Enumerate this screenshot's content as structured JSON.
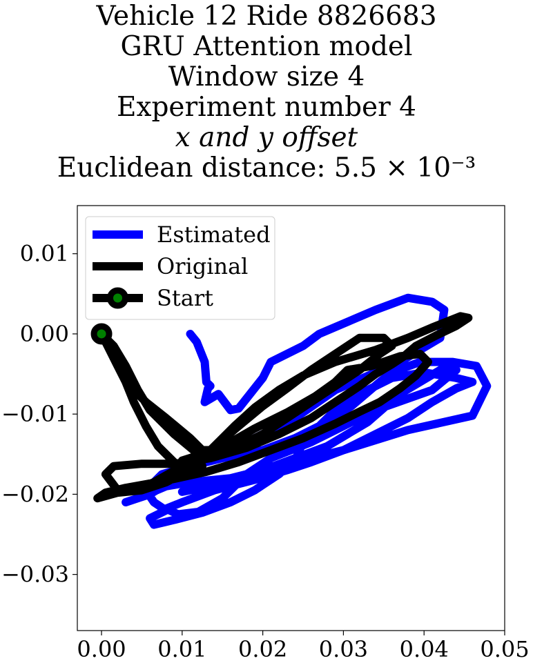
{
  "chart_data": {
    "type": "line",
    "title_lines": [
      "Vehicle 12 Ride 8826683",
      "GRU Attention model",
      "Window size 4",
      "Experiment number 4",
      "x and y offset",
      "Euclidean distance: 5.5 × 10⁻³"
    ],
    "xlabel": "",
    "ylabel": "",
    "xlim": [
      -0.003,
      0.05
    ],
    "ylim": [
      -0.037,
      0.016
    ],
    "x_ticks": [
      0.0,
      0.01,
      0.02,
      0.03,
      0.04,
      0.05
    ],
    "x_tick_labels": [
      "0.00",
      "0.01",
      "0.02",
      "0.03",
      "0.04",
      "0.05"
    ],
    "y_ticks": [
      0.01,
      0.0,
      -0.01,
      -0.02,
      -0.03
    ],
    "y_tick_labels": [
      "0.01",
      "0.00",
      "−0.01",
      "−0.02",
      "−0.03"
    ],
    "grid": false,
    "legend_position": "upper-left",
    "legend": [
      "Estimated",
      "Original",
      "Start"
    ],
    "series": [
      {
        "name": "Estimated",
        "color": "#0000ff",
        "points": [
          [
            0.011,
            0.0
          ],
          [
            0.0118,
            -0.001
          ],
          [
            0.0128,
            -0.0035
          ],
          [
            0.013,
            -0.006
          ],
          [
            0.0135,
            -0.0065
          ],
          [
            0.0132,
            -0.0068
          ],
          [
            0.0128,
            -0.0085
          ],
          [
            0.0145,
            -0.0075
          ],
          [
            0.016,
            -0.0095
          ],
          [
            0.017,
            -0.0093
          ],
          [
            0.02,
            -0.0055
          ],
          [
            0.021,
            -0.0035
          ],
          [
            0.025,
            -0.0015
          ],
          [
            0.027,
            0.0
          ],
          [
            0.034,
            0.003
          ],
          [
            0.038,
            0.0045
          ],
          [
            0.041,
            0.004
          ],
          [
            0.0425,
            0.003
          ],
          [
            0.042,
            -0.0005
          ],
          [
            0.037,
            -0.0035
          ],
          [
            0.029,
            -0.007
          ],
          [
            0.024,
            -0.0105
          ],
          [
            0.02,
            -0.0125
          ],
          [
            0.016,
            -0.0145
          ],
          [
            0.0115,
            -0.0165
          ],
          [
            0.0085,
            -0.0185
          ],
          [
            0.006,
            -0.02
          ],
          [
            0.0045,
            -0.0205
          ],
          [
            0.003,
            -0.021
          ],
          [
            0.0045,
            -0.0205
          ],
          [
            0.008,
            -0.019
          ],
          [
            0.011,
            -0.0185
          ],
          [
            0.016,
            -0.018
          ],
          [
            0.02,
            -0.017
          ],
          [
            0.024,
            -0.0155
          ],
          [
            0.028,
            -0.014
          ],
          [
            0.033,
            -0.011
          ],
          [
            0.037,
            -0.0075
          ],
          [
            0.042,
            -0.0045
          ],
          [
            0.044,
            -0.0045
          ],
          [
            0.041,
            -0.007
          ],
          [
            0.034,
            -0.0095
          ],
          [
            0.03,
            -0.0115
          ],
          [
            0.026,
            -0.0135
          ],
          [
            0.021,
            -0.0155
          ],
          [
            0.018,
            -0.0175
          ],
          [
            0.015,
            -0.0205
          ],
          [
            0.012,
            -0.0222
          ],
          [
            0.0095,
            -0.0225
          ],
          [
            0.008,
            -0.0218
          ],
          [
            0.01,
            -0.021
          ],
          [
            0.014,
            -0.0195
          ],
          [
            0.019,
            -0.0182
          ],
          [
            0.023,
            -0.017
          ],
          [
            0.026,
            -0.016
          ],
          [
            0.03,
            -0.0145
          ],
          [
            0.034,
            -0.0125
          ],
          [
            0.038,
            -0.0105
          ],
          [
            0.041,
            -0.0085
          ],
          [
            0.044,
            -0.0068
          ],
          [
            0.046,
            -0.006
          ],
          [
            0.044,
            -0.0055
          ],
          [
            0.04,
            -0.0048
          ],
          [
            0.036,
            -0.0055
          ],
          [
            0.032,
            -0.0075
          ],
          [
            0.029,
            -0.0095
          ],
          [
            0.027,
            -0.0115
          ],
          [
            0.025,
            -0.0135
          ],
          [
            0.024,
            -0.0158
          ],
          [
            0.022,
            -0.0175
          ],
          [
            0.019,
            -0.0195
          ],
          [
            0.016,
            -0.021
          ],
          [
            0.0125,
            -0.0223
          ],
          [
            0.009,
            -0.0232
          ],
          [
            0.0065,
            -0.0238
          ],
          [
            0.006,
            -0.023
          ],
          [
            0.008,
            -0.022
          ],
          [
            0.0065,
            -0.021
          ],
          [
            0.0055,
            -0.0195
          ],
          [
            0.0075,
            -0.0175
          ],
          [
            0.011,
            -0.0165
          ],
          [
            0.015,
            -0.0155
          ],
          [
            0.02,
            -0.0145
          ],
          [
            0.024,
            -0.013
          ],
          [
            0.028,
            -0.011
          ],
          [
            0.031,
            -0.009
          ],
          [
            0.0345,
            -0.006
          ],
          [
            0.036,
            -0.0048
          ],
          [
            0.0395,
            -0.0035
          ],
          [
            0.0435,
            -0.0035
          ],
          [
            0.0465,
            -0.004
          ],
          [
            0.0478,
            -0.0065
          ],
          [
            0.046,
            -0.0102
          ],
          [
            0.038,
            -0.012
          ],
          [
            0.03,
            -0.0145
          ],
          [
            0.024,
            -0.016
          ],
          [
            0.019,
            -0.0175
          ],
          [
            0.015,
            -0.0188
          ],
          [
            0.012,
            -0.0193
          ],
          [
            0.01,
            -0.0197
          ]
        ]
      },
      {
        "name": "Original",
        "color": "#000000",
        "points": [
          [
            0.0,
            0.0
          ],
          [
            0.001,
            -0.0015
          ],
          [
            0.002,
            -0.004
          ],
          [
            0.003,
            -0.006
          ],
          [
            0.004,
            -0.0085
          ],
          [
            0.0055,
            -0.0115
          ],
          [
            0.007,
            -0.014
          ],
          [
            0.0095,
            -0.0165
          ],
          [
            0.0115,
            -0.0175
          ],
          [
            0.0125,
            -0.0165
          ],
          [
            0.012,
            -0.015
          ],
          [
            0.009,
            -0.0125
          ],
          [
            0.006,
            -0.0095
          ],
          [
            0.0045,
            -0.007
          ],
          [
            0.003,
            -0.004
          ],
          [
            0.0015,
            -0.0015
          ],
          [
            0.0,
            0.0
          ],
          [
            0.0005,
            -0.001
          ],
          [
            0.002,
            -0.004
          ],
          [
            0.0035,
            -0.0065
          ],
          [
            0.0055,
            -0.0085
          ],
          [
            0.008,
            -0.0105
          ],
          [
            0.011,
            -0.013
          ],
          [
            0.0125,
            -0.0145
          ],
          [
            0.016,
            -0.0145
          ],
          [
            0.02,
            -0.0125
          ],
          [
            0.023,
            -0.0105
          ],
          [
            0.026,
            -0.0085
          ],
          [
            0.029,
            -0.0065
          ],
          [
            0.032,
            -0.0045
          ],
          [
            0.0345,
            -0.0025
          ],
          [
            0.036,
            -0.0015
          ],
          [
            0.035,
            -0.0005
          ],
          [
            0.032,
            -0.0005
          ],
          [
            0.029,
            -0.0025
          ],
          [
            0.026,
            -0.0045
          ],
          [
            0.023,
            -0.0068
          ],
          [
            0.02,
            -0.009
          ],
          [
            0.017,
            -0.0115
          ],
          [
            0.0135,
            -0.0145
          ],
          [
            0.01,
            -0.0165
          ],
          [
            0.0065,
            -0.0185
          ],
          [
            0.004,
            -0.0195
          ],
          [
            0.002,
            -0.0195
          ],
          [
            0.0005,
            -0.0175
          ],
          [
            0.0015,
            -0.0165
          ],
          [
            0.005,
            -0.0162
          ],
          [
            0.009,
            -0.0162
          ],
          [
            0.0135,
            -0.0155
          ],
          [
            0.018,
            -0.0142
          ],
          [
            0.022,
            -0.0125
          ],
          [
            0.026,
            -0.0105
          ],
          [
            0.029,
            -0.0085
          ],
          [
            0.032,
            -0.0065
          ],
          [
            0.034,
            -0.005
          ],
          [
            0.036,
            -0.0038
          ],
          [
            0.0375,
            -0.0028
          ],
          [
            0.039,
            -0.0015
          ],
          [
            0.0415,
            -0.0002
          ],
          [
            0.044,
            0.001
          ],
          [
            0.0455,
            0.002
          ],
          [
            0.0445,
            0.0022
          ],
          [
            0.041,
            0.0008
          ],
          [
            0.038,
            -0.0005
          ],
          [
            0.034,
            -0.002
          ],
          [
            0.029,
            -0.0035
          ],
          [
            0.025,
            -0.0052
          ],
          [
            0.022,
            -0.007
          ],
          [
            0.019,
            -0.0092
          ],
          [
            0.0165,
            -0.0115
          ],
          [
            0.0145,
            -0.0135
          ],
          [
            0.0125,
            -0.0155
          ],
          [
            0.0105,
            -0.0172
          ],
          [
            0.008,
            -0.0185
          ],
          [
            0.005,
            -0.0195
          ],
          [
            0.002,
            -0.0198
          ],
          [
            -0.0005,
            -0.0205
          ],
          [
            0.0005,
            -0.0198
          ],
          [
            0.003,
            -0.0192
          ],
          [
            0.008,
            -0.0183
          ],
          [
            0.013,
            -0.0172
          ],
          [
            0.017,
            -0.016
          ],
          [
            0.021,
            -0.0145
          ],
          [
            0.025,
            -0.013
          ],
          [
            0.029,
            -0.0112
          ],
          [
            0.032,
            -0.0097
          ],
          [
            0.0345,
            -0.0085
          ],
          [
            0.037,
            -0.0068
          ],
          [
            0.039,
            -0.0052
          ],
          [
            0.0405,
            -0.0035
          ],
          [
            0.0395,
            -0.0025
          ],
          [
            0.037,
            -0.0028
          ],
          [
            0.035,
            -0.0035
          ],
          [
            0.0335,
            -0.004
          ],
          [
            0.0305,
            -0.0045
          ],
          [
            0.029,
            -0.006
          ],
          [
            0.0265,
            -0.0078
          ],
          [
            0.023,
            -0.0098
          ],
          [
            0.019,
            -0.0118
          ],
          [
            0.0155,
            -0.0138
          ],
          [
            0.0125,
            -0.015
          ],
          [
            0.01,
            -0.0158
          ]
        ]
      }
    ],
    "start_point": {
      "name": "Start",
      "x": 0.0,
      "y": 0.0,
      "marker_face": "#008000",
      "marker_edge": "#000000"
    }
  }
}
